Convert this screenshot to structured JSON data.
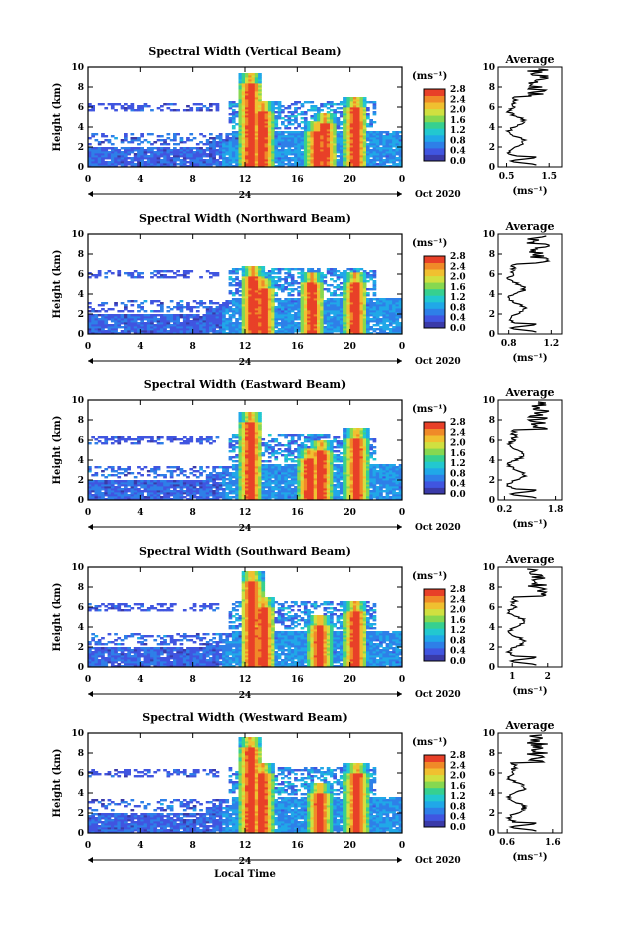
{
  "chart_data": [
    {
      "type": "heatmap",
      "title": "Spectral Width (Vertical Beam)",
      "ylabel": "Height (km)",
      "ylim": [
        0,
        10
      ],
      "yticks": [
        "0",
        "2",
        "4",
        "6",
        "8",
        "10"
      ],
      "xlim": [
        0,
        24
      ],
      "xticks": [
        "0",
        "4",
        "8",
        "12",
        "16",
        "20",
        "0"
      ],
      "date_marker": "24",
      "date_label": "Oct 2020",
      "colorbar": {
        "unit": "(ms⁻¹)",
        "ticks": [
          "0.0",
          "0.4",
          "0.8",
          "1.2",
          "1.6",
          "2.0",
          "2.4",
          "2.8"
        ]
      },
      "average_profile": {
        "title": "Average",
        "xlabel": "(ms⁻¹)",
        "xticks": [
          "0.5",
          "1.5"
        ],
        "yticks": [
          "0",
          "2",
          "4",
          "6",
          "8",
          "10"
        ],
        "xlim": [
          0.3,
          1.8
        ]
      },
      "convective_cells": [
        {
          "t": 12.3,
          "top": 9.3
        },
        {
          "t": 13.2,
          "top": 6.5
        },
        {
          "t": 17.4,
          "top": 4.5
        },
        {
          "t": 18.0,
          "top": 5.3
        },
        {
          "t": 20.3,
          "top": 7.0
        }
      ]
    },
    {
      "type": "heatmap",
      "title": "Spectral Width (Northward Beam)",
      "ylabel": "Height (km)",
      "ylim": [
        0,
        10
      ],
      "yticks": [
        "0",
        "2",
        "4",
        "6",
        "8",
        "10"
      ],
      "xlim": [
        0,
        24
      ],
      "xticks": [
        "0",
        "4",
        "8",
        "12",
        "16",
        "20",
        "0"
      ],
      "date_marker": "24",
      "date_label": "Oct 2020",
      "colorbar": {
        "unit": "(ms⁻¹)",
        "ticks": [
          "0.0",
          "0.4",
          "0.8",
          "1.2",
          "1.6",
          "2.0",
          "2.4",
          "2.8"
        ]
      },
      "average_profile": {
        "title": "Average",
        "xlabel": "(ms⁻¹)",
        "xticks": [
          "0.8",
          "1.2"
        ],
        "yticks": [
          "0",
          "2",
          "4",
          "6",
          "8",
          "10"
        ],
        "xlim": [
          0.7,
          1.3
        ]
      },
      "convective_cells": [
        {
          "t": 12.5,
          "top": 6.8
        },
        {
          "t": 13.3,
          "top": 5.5
        },
        {
          "t": 17.0,
          "top": 6.2
        },
        {
          "t": 20.3,
          "top": 6.2
        }
      ]
    },
    {
      "type": "heatmap",
      "title": "Spectral Width (Eastward Beam)",
      "ylabel": "Height (km)",
      "ylim": [
        0,
        10
      ],
      "yticks": [
        "0",
        "2",
        "4",
        "6",
        "8",
        "10"
      ],
      "xlim": [
        0,
        24
      ],
      "xticks": [
        "0",
        "4",
        "8",
        "12",
        "16",
        "20",
        "0"
      ],
      "date_marker": "24",
      "date_label": "Oct 2020",
      "colorbar": {
        "unit": "(ms⁻¹)",
        "ticks": [
          "0.0",
          "0.4",
          "0.8",
          "1.2",
          "1.6",
          "2.0",
          "2.4",
          "2.8"
        ]
      },
      "average_profile": {
        "title": "Average",
        "xlabel": "(ms⁻¹)",
        "xticks": [
          "0.2",
          "1.8"
        ],
        "yticks": [
          "0",
          "2",
          "4",
          "6",
          "8",
          "10"
        ],
        "xlim": [
          0.0,
          2.0
        ]
      },
      "convective_cells": [
        {
          "t": 12.3,
          "top": 8.8
        },
        {
          "t": 16.8,
          "top": 5.2
        },
        {
          "t": 17.7,
          "top": 6.0
        },
        {
          "t": 20.4,
          "top": 7.2
        }
      ]
    },
    {
      "type": "heatmap",
      "title": "Spectral Width (Southward Beam)",
      "ylabel": "Height (km)",
      "ylim": [
        0,
        10
      ],
      "yticks": [
        "0",
        "2",
        "4",
        "6",
        "8",
        "10"
      ],
      "xlim": [
        0,
        24
      ],
      "xticks": [
        "0",
        "4",
        "8",
        "12",
        "16",
        "20",
        "0"
      ],
      "date_marker": "24",
      "date_label": "Oct 2020",
      "colorbar": {
        "unit": "(ms⁻¹)",
        "ticks": [
          "0.0",
          "0.4",
          "0.8",
          "1.2",
          "1.6",
          "2.0",
          "2.4",
          "2.8"
        ]
      },
      "average_profile": {
        "title": "Average",
        "xlabel": "(ms⁻¹)",
        "xticks": [
          "1",
          "2"
        ],
        "yticks": [
          "0",
          "2",
          "4",
          "6",
          "8",
          "10"
        ],
        "xlim": [
          0.6,
          2.4
        ]
      },
      "convective_cells": [
        {
          "t": 12.4,
          "top": 9.5
        },
        {
          "t": 13.3,
          "top": 7.0
        },
        {
          "t": 17.6,
          "top": 5.2
        },
        {
          "t": 20.3,
          "top": 6.5
        }
      ]
    },
    {
      "type": "heatmap",
      "title": "Spectral Width (Westward Beam)",
      "ylabel": "Height (km)",
      "ylim": [
        0,
        10
      ],
      "yticks": [
        "0",
        "2",
        "4",
        "6",
        "8",
        "10"
      ],
      "xlim": [
        0,
        24
      ],
      "xticks": [
        "0",
        "4",
        "8",
        "12",
        "16",
        "20",
        "0"
      ],
      "date_marker": "24",
      "date_label": "Oct 2020",
      "xlabel": "Local Time",
      "colorbar": {
        "unit": "(ms⁻¹)",
        "ticks": [
          "0.0",
          "0.4",
          "0.8",
          "1.2",
          "1.6",
          "2.0",
          "2.4",
          "2.8"
        ]
      },
      "average_profile": {
        "title": "Average",
        "xlabel": "(ms⁻¹)",
        "xticks": [
          "0.6",
          "1.6"
        ],
        "yticks": [
          "0",
          "2",
          "4",
          "6",
          "8",
          "10"
        ],
        "xlim": [
          0.4,
          1.8
        ]
      },
      "convective_cells": [
        {
          "t": 12.3,
          "top": 9.5
        },
        {
          "t": 13.2,
          "top": 7.0
        },
        {
          "t": 17.6,
          "top": 5.0
        },
        {
          "t": 20.4,
          "top": 7.0
        }
      ]
    }
  ]
}
